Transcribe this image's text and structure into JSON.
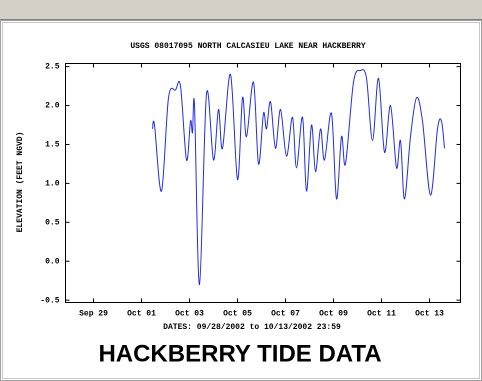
{
  "chart_data": {
    "type": "line",
    "title": "USGS 08017095 NORTH CALCASIEU LAKE NEAR HACKBERRY",
    "x_label": "DATES: 09/28/2002 to 10/13/2002 23:59",
    "y_label": "ELEVATION (FEET NGVD)",
    "caption": "HACKBERRY TIDE DATA",
    "x": [
      "2002-10-01 11:00",
      "2002-10-01 13:00",
      "2002-10-01 20:00",
      "2002-10-02 03:00",
      "2002-10-02 10:00",
      "2002-10-02 15:00",
      "2002-10-02 21:00",
      "2002-10-03 01:00",
      "2002-10-03 03:00",
      "2002-10-03 05:00",
      "2002-10-03 10:00",
      "2002-10-03 17:00",
      "2002-10-04 00:00",
      "2002-10-04 05:00",
      "2002-10-04 09:00",
      "2002-10-04 17:00",
      "2002-10-05 00:00",
      "2002-10-05 05:00",
      "2002-10-05 09:00",
      "2002-10-05 16:00",
      "2002-10-05 21:00",
      "2002-10-06 02:00",
      "2002-10-06 05:00",
      "2002-10-06 09:00",
      "2002-10-06 14:00",
      "2002-10-06 19:00",
      "2002-10-07 01:00",
      "2002-10-07 07:00",
      "2002-10-07 11:00",
      "2002-10-07 17:00",
      "2002-10-07 21:00",
      "2002-10-08 02:00",
      "2002-10-08 06:00",
      "2002-10-08 11:00",
      "2002-10-08 15:00",
      "2002-10-08 22:00",
      "2002-10-09 03:00",
      "2002-10-09 08:00",
      "2002-10-09 12:00",
      "2002-10-09 20:00",
      "2002-10-10 03:00",
      "2002-10-10 09:00",
      "2002-10-10 15:00",
      "2002-10-10 21:00",
      "2002-10-11 03:00",
      "2002-10-11 09:00",
      "2002-10-11 15:00",
      "2002-10-11 19:00",
      "2002-10-11 23:00",
      "2002-10-12 05:00",
      "2002-10-12 11:00",
      "2002-10-12 17:00",
      "2002-10-13 01:00",
      "2002-10-13 08:00",
      "2002-10-13 12:00",
      "2002-10-13 15:00"
    ],
    "series": [
      {
        "color": "#1f2fe0",
        "values": [
          1.7,
          1.75,
          0.9,
          2.1,
          2.2,
          2.25,
          1.3,
          1.8,
          1.65,
          2.0,
          -0.3,
          2.15,
          1.3,
          1.95,
          1.45,
          2.4,
          1.05,
          2.1,
          1.6,
          2.3,
          1.25,
          1.9,
          1.7,
          2.05,
          1.45,
          1.95,
          1.35,
          1.85,
          1.2,
          1.85,
          0.9,
          1.75,
          1.15,
          1.7,
          1.3,
          1.9,
          0.8,
          1.6,
          1.25,
          2.3,
          2.45,
          2.35,
          1.55,
          2.35,
          1.4,
          2.0,
          1.2,
          1.55,
          0.8,
          1.6,
          2.1,
          1.8,
          0.85,
          1.7,
          1.8,
          1.45
        ]
      }
    ],
    "xlim": [
      "2002-09-27 20:00",
      "2002-10-14 07:00"
    ],
    "xticks": [
      {
        "value": "2002-09-29 00:00",
        "label": "Sep 29"
      },
      {
        "value": "2002-10-01 00:00",
        "label": "Oct 01"
      },
      {
        "value": "2002-10-03 00:00",
        "label": "Oct 03"
      },
      {
        "value": "2002-10-05 00:00",
        "label": "Oct 05"
      },
      {
        "value": "2002-10-07 00:00",
        "label": "Oct 07"
      },
      {
        "value": "2002-10-09 00:00",
        "label": "Oct 09"
      },
      {
        "value": "2002-10-11 00:00",
        "label": "Oct 11"
      },
      {
        "value": "2002-10-13 00:00",
        "label": "Oct 13"
      }
    ],
    "ylim": [
      -0.53,
      2.54
    ],
    "yticks": [
      -0.5,
      {
        "value": 0,
        "label": "0.0"
      },
      0.5,
      {
        "value": 1,
        "label": "1.0"
      },
      1.5,
      {
        "value": 2,
        "label": "2.0"
      },
      2.5
    ],
    "grid": false
  }
}
